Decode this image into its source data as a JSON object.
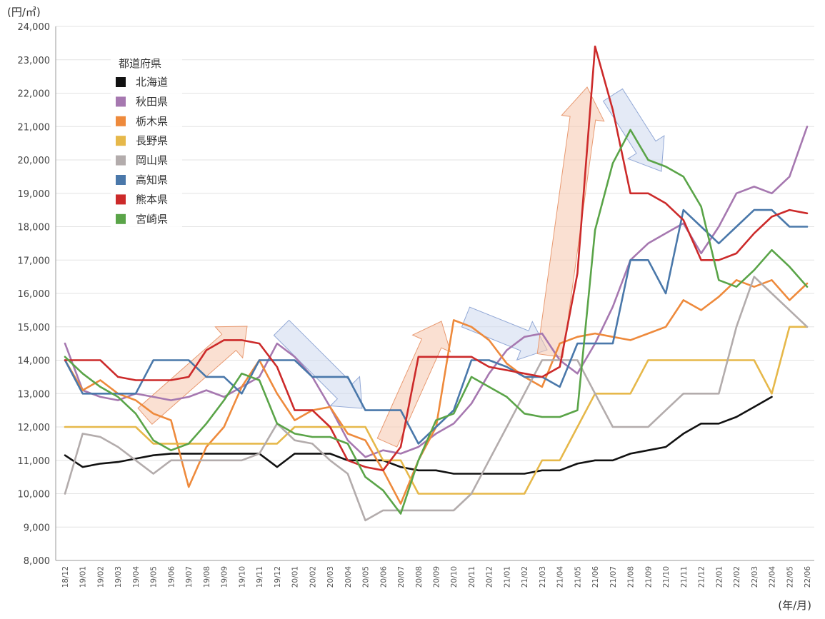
{
  "chart_data": {
    "type": "line",
    "unit_label": "(円/㎥)",
    "x_unit_label": "(年/月)",
    "legend_title": "都道府県",
    "legend_position": "top-left",
    "grid": true,
    "ylim": [
      8000,
      24000
    ],
    "yticks": [
      8000,
      9000,
      10000,
      11000,
      12000,
      13000,
      14000,
      15000,
      16000,
      17000,
      18000,
      19000,
      20000,
      21000,
      22000,
      23000,
      24000
    ],
    "ytick_labels": [
      "8,000",
      "9,000",
      "10,000",
      "11,000",
      "12,000",
      "13,000",
      "14,000",
      "15,000",
      "16,000",
      "17,000",
      "18,000",
      "19,000",
      "20,000",
      "21,000",
      "22,000",
      "23,000",
      "24,000"
    ],
    "xtick_labels": [
      "18/12",
      "19/01",
      "19/02",
      "19/03",
      "19/04",
      "19/05",
      "19/06",
      "19/07",
      "19/08",
      "19/09",
      "19/10",
      "19/11",
      "19/12",
      "20/01",
      "20/02",
      "20/03",
      "20/04",
      "20/05",
      "20/06",
      "20/07",
      "20/08",
      "20/09",
      "20/10",
      "20/11",
      "20/12",
      "21/01",
      "21/02",
      "21/03",
      "21/04",
      "21/05",
      "21/06",
      "21/07",
      "21/08",
      "21/09",
      "21/10",
      "21/11",
      "21/12",
      "22/01",
      "22/02",
      "22/03",
      "22/04",
      "22/05",
      "22/06"
    ],
    "series": [
      {
        "name": "北海道",
        "color": "#111111",
        "values": [
          11150,
          10800,
          10900,
          10950,
          11050,
          11150,
          11200,
          11200,
          11200,
          11200,
          11200,
          11200,
          10800,
          11200,
          11200,
          11200,
          11000,
          11000,
          11000,
          10800,
          10700,
          10700,
          10600,
          10600,
          10600,
          10600,
          10600,
          10700,
          10700,
          10900,
          11000,
          11000,
          11200,
          11300,
          11400,
          11800,
          12100,
          12100,
          12300,
          12600,
          12900,
          null,
          null
        ]
      },
      {
        "name": "秋田県",
        "color": "#a678b0",
        "values": [
          14500,
          13100,
          12900,
          12800,
          13000,
          12900,
          12800,
          12900,
          13100,
          12900,
          13200,
          13500,
          14500,
          14100,
          13500,
          12600,
          11600,
          11100,
          11300,
          11200,
          11400,
          11800,
          12100,
          12700,
          13600,
          14300,
          14700,
          14800,
          14000,
          13600,
          14500,
          15600,
          17000,
          17500,
          17800,
          18100,
          17200,
          18000,
          19000,
          19200,
          19000,
          19500,
          21000
        ]
      },
      {
        "name": "栃木県",
        "color": "#ee8a3c",
        "values": [
          14000,
          13100,
          13400,
          13000,
          12800,
          12400,
          12200,
          10200,
          11400,
          12000,
          13200,
          14000,
          13000,
          12200,
          12500,
          12600,
          11800,
          11600,
          10700,
          9700,
          11000,
          12000,
          15200,
          15000,
          14600,
          13900,
          13500,
          13200,
          14500,
          14700,
          14800,
          14700,
          14600,
          14800,
          15000,
          15800,
          15500,
          15900,
          16400,
          16200,
          16400,
          15800,
          16300
        ]
      },
      {
        "name": "長野県",
        "color": "#e6b84a",
        "values": [
          12000,
          12000,
          12000,
          12000,
          12000,
          11500,
          11500,
          11500,
          11500,
          11500,
          11500,
          11500,
          11500,
          12000,
          12000,
          12000,
          12000,
          12000,
          11000,
          11000,
          10000,
          10000,
          10000,
          10000,
          10000,
          10000,
          10000,
          11000,
          11000,
          12000,
          13000,
          13000,
          13000,
          14000,
          14000,
          14000,
          14000,
          14000,
          14000,
          14000,
          13000,
          15000,
          15000
        ]
      },
      {
        "name": "岡山県",
        "color": "#b3acac",
        "values": [
          10000,
          11800,
          11700,
          11400,
          11000,
          10600,
          11000,
          11000,
          11000,
          11000,
          11000,
          11200,
          12100,
          11600,
          11500,
          11000,
          10600,
          9200,
          9500,
          9500,
          9500,
          9500,
          9500,
          10000,
          11000,
          12000,
          13000,
          14000,
          14000,
          14000,
          13000,
          12000,
          12000,
          12000,
          12500,
          13000,
          13000,
          13000,
          15000,
          16500,
          16000,
          15500,
          15000
        ]
      },
      {
        "name": "高知県",
        "color": "#4a78aa",
        "values": [
          14000,
          13000,
          13000,
          13000,
          13000,
          14000,
          14000,
          14000,
          13500,
          13500,
          13000,
          14000,
          14000,
          14000,
          13500,
          13500,
          13500,
          12500,
          12500,
          12500,
          11500,
          12000,
          12500,
          14000,
          14000,
          13800,
          13500,
          13500,
          13200,
          14500,
          14500,
          14500,
          17000,
          17000,
          16000,
          18500,
          18000,
          17500,
          18000,
          18500,
          18500,
          18000,
          18000
        ]
      },
      {
        "name": "熊本県",
        "color": "#cc2a2a",
        "values": [
          14000,
          14000,
          14000,
          13500,
          13400,
          13400,
          13400,
          13500,
          14300,
          14600,
          14600,
          14500,
          13800,
          12500,
          12500,
          12000,
          11000,
          10800,
          10700,
          11400,
          14100,
          14100,
          14100,
          14100,
          13800,
          13700,
          13600,
          13500,
          13800,
          16600,
          23400,
          21500,
          19000,
          19000,
          18700,
          18200,
          17000,
          17000,
          17200,
          17800,
          18300,
          18500,
          18400
        ]
      },
      {
        "name": "宮崎県",
        "color": "#5aa448",
        "values": [
          14100,
          13600,
          13200,
          12900,
          12400,
          11600,
          11300,
          11500,
          12100,
          12800,
          13600,
          13400,
          12100,
          11800,
          11700,
          11700,
          11500,
          10500,
          10100,
          9400,
          11000,
          12200,
          12400,
          13500,
          13200,
          12900,
          12400,
          12300,
          12300,
          12500,
          17900,
          19900,
          20900,
          20000,
          19800,
          19500,
          18600,
          16400,
          16200,
          16700,
          17300,
          16800,
          16200
        ]
      }
    ]
  }
}
